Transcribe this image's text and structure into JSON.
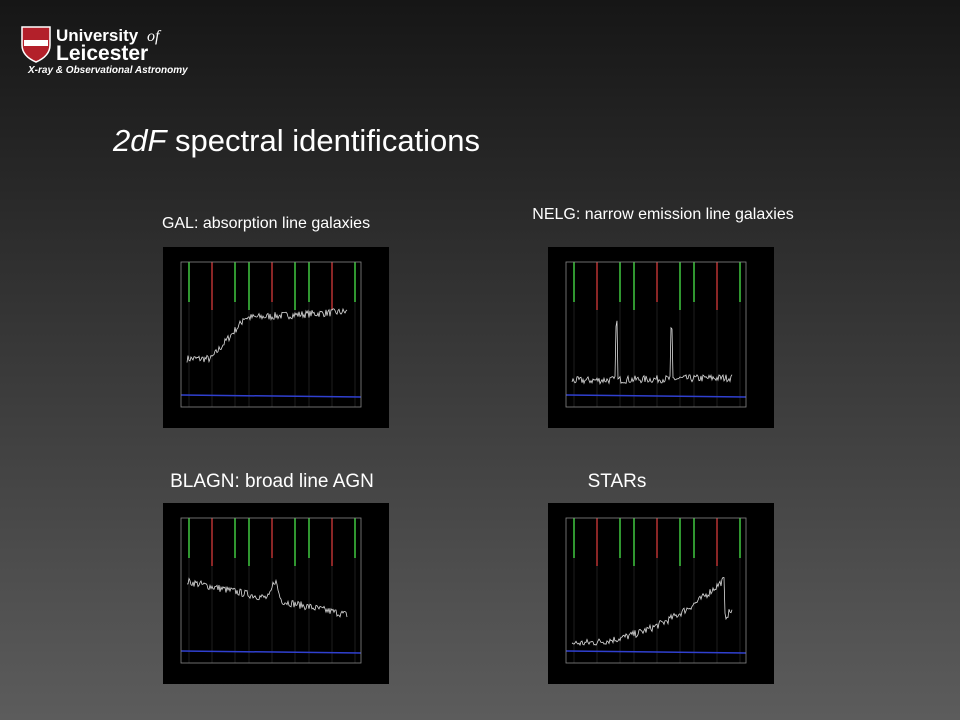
{
  "header": {
    "university": "University",
    "of": "of",
    "city": "Leicester",
    "group": "X-ray & Observational Astronomy"
  },
  "title": {
    "italic": "2dF",
    "rest": "spectral identifications"
  },
  "panels": [
    {
      "label": "GAL: absorption line galaxies"
    },
    {
      "label": "NELG: narrow emission line galaxies"
    },
    {
      "label": "BLAGN: broad line AGN"
    },
    {
      "label": "STARs"
    }
  ]
}
